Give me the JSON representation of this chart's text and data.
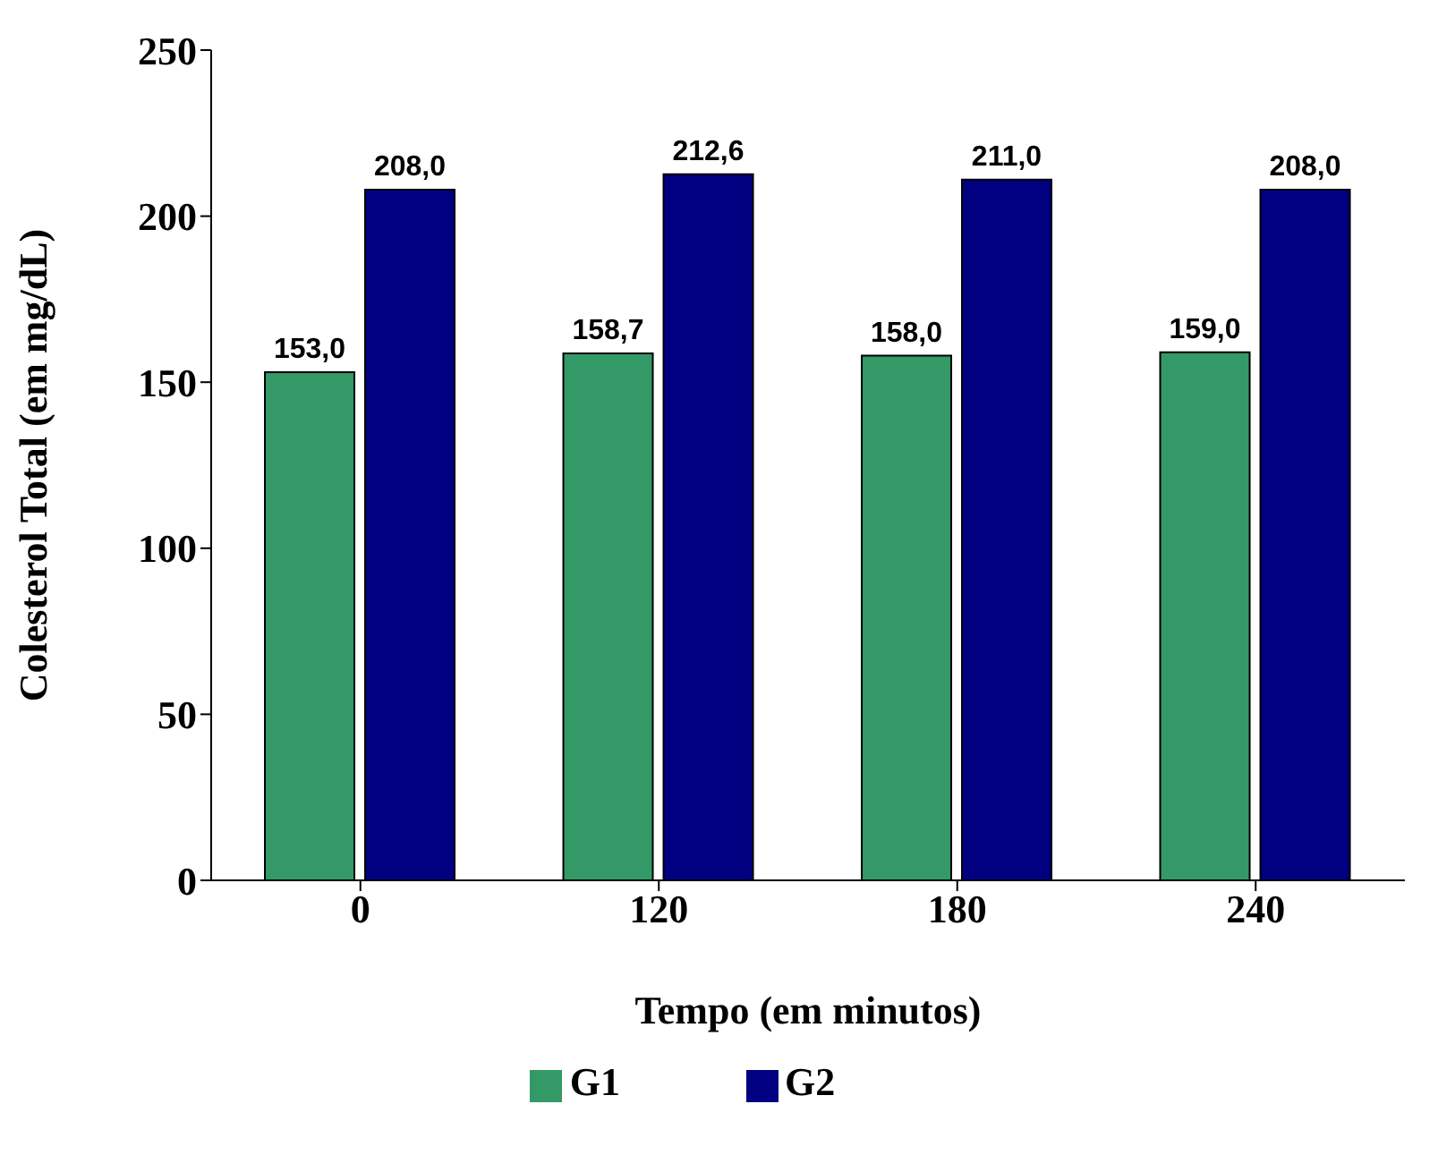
{
  "chart_data": {
    "type": "bar",
    "xlabel": "Tempo (em minutos)",
    "ylabel": "Colesterol Total (em mg/dL)",
    "categories": [
      "0",
      "120",
      "180",
      "240"
    ],
    "series": [
      {
        "name": "G1",
        "color": "#339966",
        "values": [
          153.0,
          158.7,
          158.0,
          159.0
        ],
        "value_labels": [
          "153,0",
          "158,7",
          "158,0",
          "159,0"
        ]
      },
      {
        "name": "G2",
        "color": "#000080",
        "values": [
          208.0,
          212.6,
          211.0,
          208.0
        ],
        "value_labels": [
          "208,0",
          "212,6",
          "211,0",
          "208,0"
        ]
      }
    ],
    "ylim": [
      0,
      250
    ],
    "yticks": [
      0,
      50,
      100,
      150,
      200,
      250
    ],
    "grid": false,
    "legend": "bottom"
  }
}
